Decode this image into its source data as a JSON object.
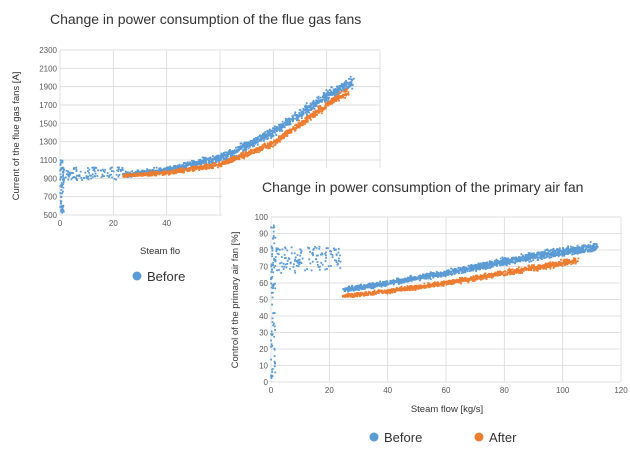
{
  "chart_data": [
    {
      "type": "scatter",
      "title": "Change in power consumption of the flue gas fans",
      "xlabel": "Steam flo",
      "ylabel": "Current of the flue gas fans [A]",
      "xlim": [
        0,
        120
      ],
      "ylim": [
        500,
        2300
      ],
      "xticks": [
        "0",
        "20",
        "40"
      ],
      "yticks": [
        "500",
        "700",
        "900",
        "1100",
        "1300",
        "1500",
        "1700",
        "1900",
        "2100",
        "2300"
      ],
      "grid": true,
      "legend": "bottom-left",
      "series": [
        {
          "name": "Before",
          "color": "#5b9bd5",
          "trend": [
            [
              24,
              940
            ],
            [
              40,
              990
            ],
            [
              60,
              1120
            ],
            [
              80,
              1400
            ],
            [
              100,
              1800
            ],
            [
              110,
              1960
            ]
          ]
        },
        {
          "name": "After",
          "color": "#ed7d31",
          "trend": [
            [
              24,
              930
            ],
            [
              40,
              960
            ],
            [
              60,
              1050
            ],
            [
              80,
              1280
            ],
            [
              100,
              1700
            ],
            [
              108,
              1850
            ]
          ]
        }
      ],
      "legend_entries": [
        "Before"
      ]
    },
    {
      "type": "scatter",
      "title": "Change in power consumption of the primary air fan",
      "xlabel": "Steam flow [kg/s]",
      "ylabel": "Control of the primary air fan [%]",
      "xlim": [
        0,
        120
      ],
      "ylim": [
        0,
        100
      ],
      "xticks": [
        "0",
        "20",
        "40",
        "60",
        "80",
        "100",
        "120"
      ],
      "yticks": [
        "0",
        "10",
        "20",
        "30",
        "40",
        "50",
        "60",
        "70",
        "80",
        "90",
        "100"
      ],
      "grid": true,
      "legend": "bottom",
      "series": [
        {
          "name": "Before",
          "color": "#5b9bd5",
          "trend": [
            [
              25,
              56
            ],
            [
              40,
              60
            ],
            [
              60,
              66
            ],
            [
              80,
              73
            ],
            [
              100,
              79
            ],
            [
              112,
              82
            ]
          ]
        },
        {
          "name": "After",
          "color": "#ed7d31",
          "trend": [
            [
              25,
              52
            ],
            [
              40,
              55
            ],
            [
              60,
              60
            ],
            [
              80,
              66
            ],
            [
              100,
              72
            ],
            [
              105,
              74
            ]
          ]
        }
      ],
      "legend_entries": [
        "Before",
        "After"
      ]
    }
  ]
}
